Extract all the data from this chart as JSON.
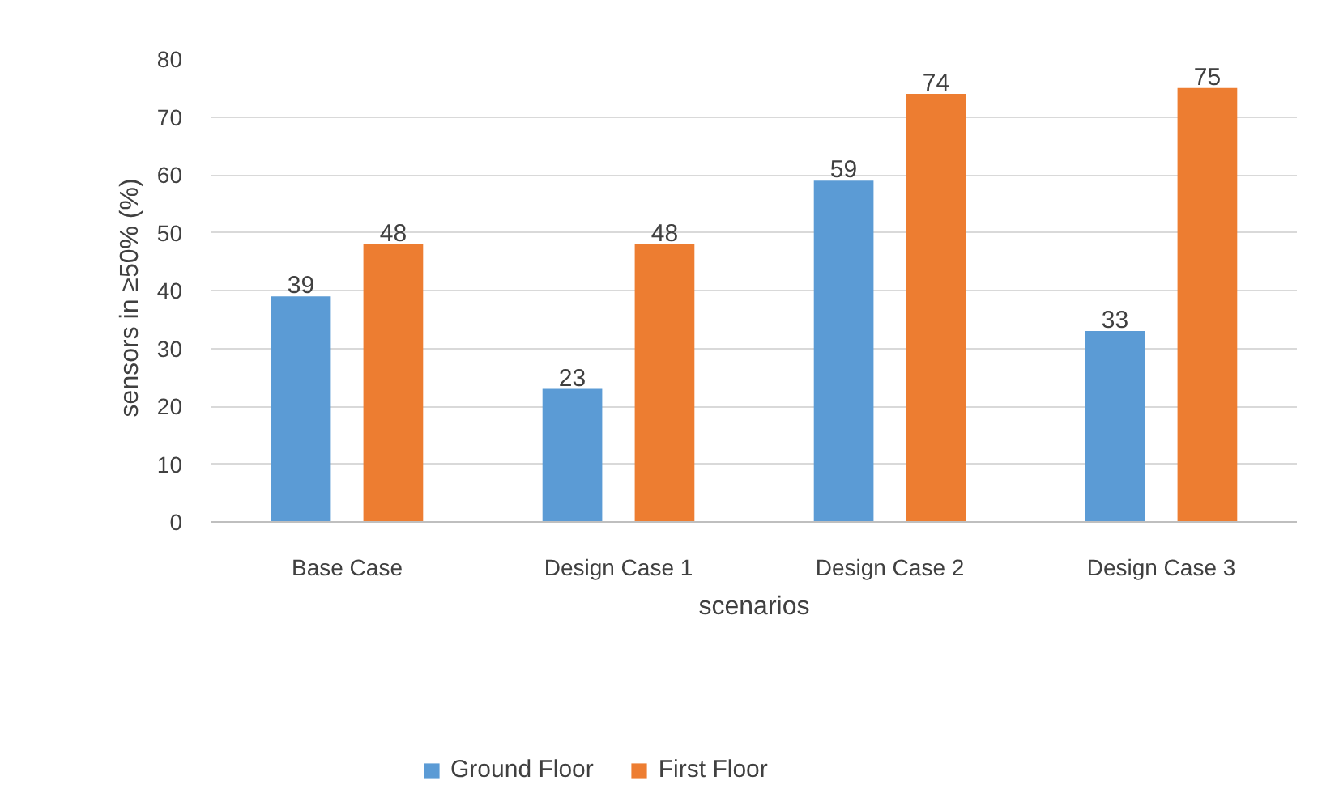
{
  "chart_data": {
    "type": "bar",
    "categories": [
      "Base Case",
      "Design Case 1",
      "Design Case 2",
      "Design Case 3"
    ],
    "series": [
      {
        "name": "Ground Floor",
        "color": "#5b9bd5",
        "values": [
          39,
          23,
          59,
          33
        ]
      },
      {
        "name": "First Floor",
        "color": "#ed7d31",
        "values": [
          48,
          48,
          74,
          75
        ]
      }
    ],
    "xlabel": "scenarios",
    "ylabel": "sensors  in ≥50%  (%)",
    "ylim": [
      0,
      80
    ],
    "yticks": [
      0,
      10,
      20,
      30,
      40,
      50,
      60,
      70,
      80
    ],
    "grid": "y",
    "legend": "bottom",
    "data_labels": true
  }
}
